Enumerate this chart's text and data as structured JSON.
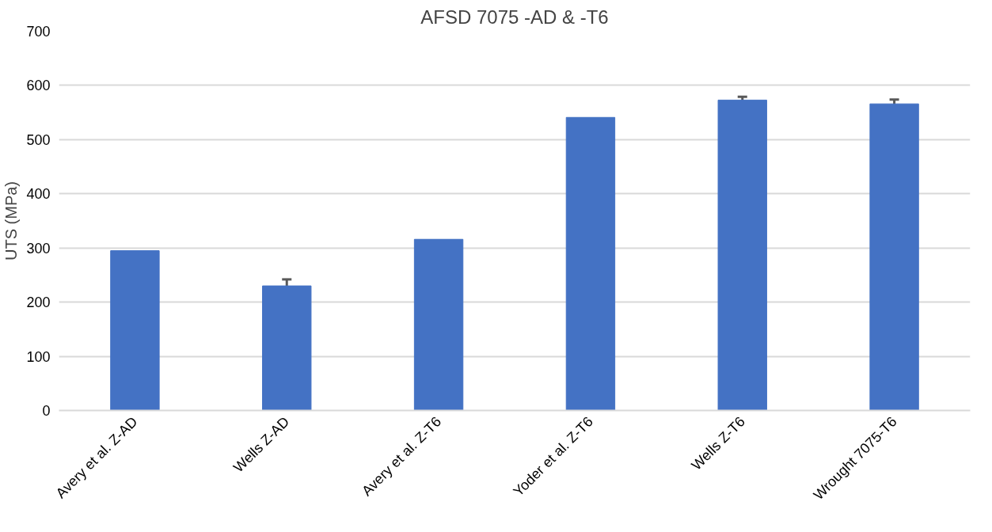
{
  "chart_data": {
    "type": "bar",
    "title": "AFSD 7075 -AD & -T6",
    "ylabel": "UTS (MPa)",
    "categories": [
      "Avery et al. Z-AD",
      "Wells Z-AD",
      "Avery et al. Z-T6",
      "Yoder et al. Z-T6",
      "Wells Z-T6",
      "Wrought 7075-T6"
    ],
    "values": [
      295,
      230,
      316,
      541,
      573,
      566
    ],
    "errors": [
      null,
      12,
      null,
      null,
      6,
      8
    ],
    "color": "#4472c4",
    "ylim": [
      0,
      700
    ],
    "yticks": [
      0,
      100,
      200,
      300,
      400,
      500,
      600,
      700
    ],
    "grid": "y"
  }
}
